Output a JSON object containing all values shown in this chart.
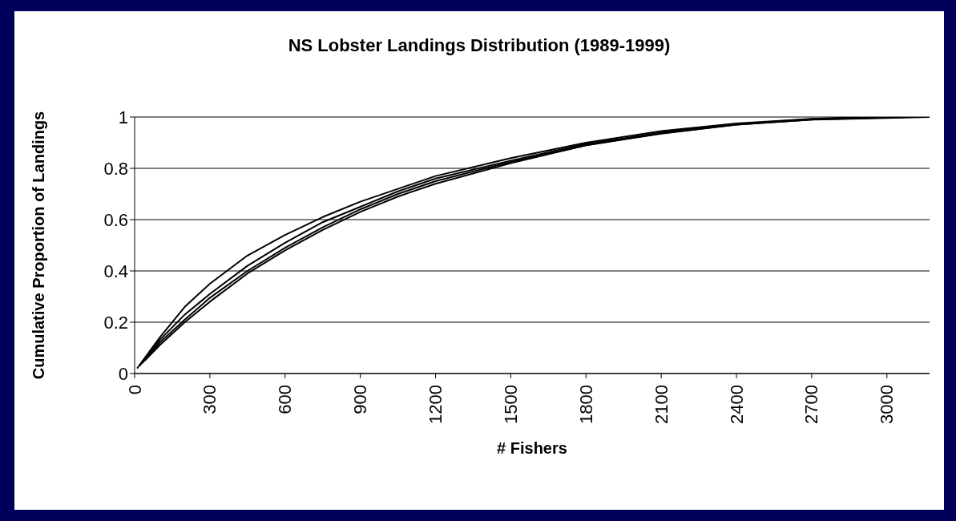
{
  "chart_data": {
    "type": "line",
    "title": "NS Lobster Landings Distribution (1989-1999)",
    "xlabel": "# Fishers",
    "ylabel": "Cumulative Proportion of Landings",
    "series": [
      {
        "color": "#000000",
        "x": [
          10,
          100,
          200,
          300,
          450,
          600,
          750,
          900,
          1050,
          1200,
          1500,
          1800,
          2100,
          2400,
          2700,
          2900
        ],
        "values": [
          0.02,
          0.14,
          0.26,
          0.35,
          0.46,
          0.54,
          0.61,
          0.67,
          0.72,
          0.77,
          0.84,
          0.9,
          0.945,
          0.975,
          0.993,
          1
        ]
      },
      {
        "color": "#000000",
        "x": [
          20,
          100,
          200,
          300,
          450,
          600,
          750,
          900,
          1050,
          1200,
          1500,
          1800,
          2100,
          2400,
          2700,
          3000
        ],
        "values": [
          0.03,
          0.13,
          0.23,
          0.31,
          0.42,
          0.51,
          0.59,
          0.65,
          0.71,
          0.76,
          0.83,
          0.895,
          0.94,
          0.972,
          0.992,
          1
        ]
      },
      {
        "color": "#000000",
        "x": [
          30,
          100,
          200,
          300,
          450,
          600,
          750,
          900,
          1050,
          1200,
          1500,
          1800,
          2100,
          2400,
          2700,
          3100
        ],
        "values": [
          0.04,
          0.12,
          0.21,
          0.295,
          0.4,
          0.49,
          0.57,
          0.64,
          0.7,
          0.75,
          0.825,
          0.89,
          0.937,
          0.97,
          0.99,
          1
        ]
      },
      {
        "color": "#000000",
        "x": [
          40,
          100,
          200,
          300,
          450,
          600,
          750,
          900,
          1050,
          1200,
          1500,
          1800,
          2100,
          2400,
          2700,
          3170
        ],
        "values": [
          0.05,
          0.11,
          0.2,
          0.28,
          0.39,
          0.48,
          0.56,
          0.63,
          0.69,
          0.74,
          0.82,
          0.89,
          0.935,
          0.97,
          0.99,
          1
        ]
      }
    ],
    "xlim": [
      0,
      3170
    ],
    "xticks": [
      0,
      300,
      600,
      900,
      1200,
      1500,
      1800,
      2100,
      2400,
      2700,
      3000
    ],
    "ylim": [
      0,
      1
    ],
    "yticks": [
      0,
      0.2,
      0.4,
      0.6,
      0.8,
      1
    ],
    "grid": "y",
    "marker": "none",
    "line_style": "solid"
  }
}
